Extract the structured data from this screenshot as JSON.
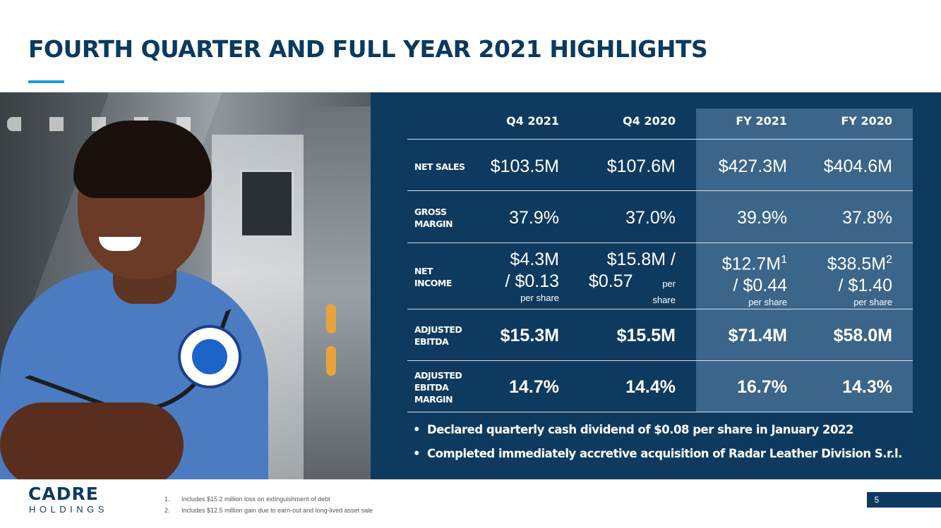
{
  "title": "FOURTH QUARTER AND FULL YEAR 2021 HIGHLIGHTS",
  "table": {
    "columns": [
      "Q4 2021",
      "Q4 2020",
      "FY 2021",
      "FY 2020"
    ],
    "rows": [
      {
        "label_lines": [
          "NET SALES"
        ],
        "values": [
          "$103.5M",
          "$107.6M",
          "$427.3M",
          "$404.6M"
        ]
      },
      {
        "label_lines": [
          "GROSS",
          "MARGIN"
        ],
        "values": [
          "37.9%",
          "37.0%",
          "39.9%",
          "37.8%"
        ]
      },
      {
        "label_lines": [
          "NET",
          "INCOME"
        ],
        "net_income": [
          {
            "line1": "$4.3M",
            "line2": "/ $0.13",
            "per_share": "per share"
          },
          {
            "line1": "$15.8M /",
            "line2": "$0.57",
            "per_share_inline": "per",
            "per_share": "share"
          },
          {
            "line1": "$12.7M",
            "sup": "1",
            "line2": "/ $0.44",
            "per_share": "per share"
          },
          {
            "line1": "$38.5M",
            "sup": "2",
            "line2": "/ $1.40",
            "per_share": "per share"
          }
        ]
      },
      {
        "label_lines": [
          "ADJUSTED",
          "EBITDA"
        ],
        "values": [
          "$15.3M",
          "$15.5M",
          "$71.4M",
          "$58.0M"
        ]
      },
      {
        "label_lines": [
          "ADJUSTED",
          "EBITDA",
          "MARGIN"
        ],
        "values": [
          "14.7%",
          "14.4%",
          "16.7%",
          "14.3%"
        ]
      }
    ]
  },
  "bullets": [
    "Declared quarterly cash dividend of $0.08 per share in January 2022",
    "Completed immediately accretive acquisition of Radar Leather Division S.r.l."
  ],
  "logo": {
    "main": "CADRE",
    "sub": "HOLDINGS"
  },
  "footnotes": [
    {
      "num": "1.",
      "text": "Includes $15.2 million loss on extinguishment of debt"
    },
    {
      "num": "2.",
      "text": "Includes $12.5 million gain due to earn-out and long-lived asset sale"
    }
  ],
  "page_number": "5",
  "colors": {
    "navy": "#0f3a5f",
    "fy_band": "#3b6589",
    "accent": "#1a9bd7",
    "title": "#0a3a5e"
  },
  "image": {
    "subject": "photo"
  }
}
